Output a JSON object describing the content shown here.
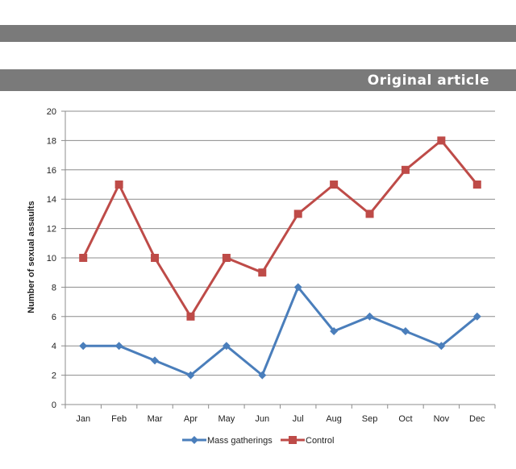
{
  "header": {
    "section_label": "Original article"
  },
  "chart_data": {
    "type": "line",
    "title": "",
    "xlabel": "",
    "ylabel": "Number of sexual assaults",
    "ylim": [
      0,
      20
    ],
    "yticks": [
      0,
      2,
      4,
      6,
      8,
      10,
      12,
      14,
      16,
      18,
      20
    ],
    "grid": true,
    "legend": "bottom",
    "categories": [
      "Jan",
      "Feb",
      "Mar",
      "Apr",
      "May",
      "Jun",
      "Jul",
      "Aug",
      "Sep",
      "Oct",
      "Nov",
      "Dec"
    ],
    "series": [
      {
        "name": "Mass gatherings",
        "color": "#4a7ebb",
        "marker": "diamond",
        "values": [
          4,
          4,
          3,
          2,
          4,
          2,
          8,
          5,
          6,
          5,
          4,
          6
        ]
      },
      {
        "name": "Control",
        "color": "#be4b48",
        "marker": "square",
        "values": [
          10,
          15,
          10,
          6,
          10,
          9,
          13,
          15,
          13,
          16,
          18,
          15
        ]
      }
    ]
  }
}
